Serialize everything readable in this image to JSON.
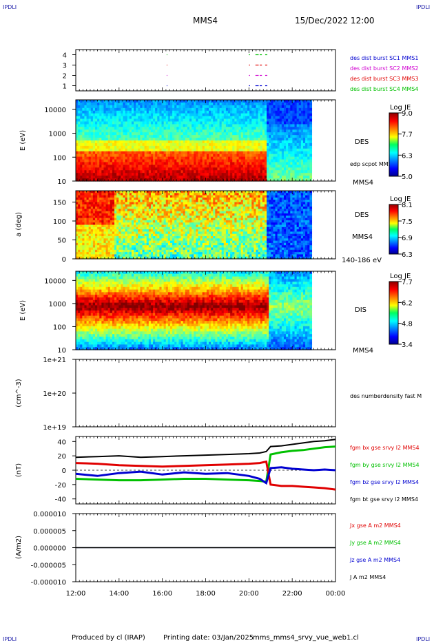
{
  "corner_labels": {
    "tl": "IPDLI",
    "tr": "IPDLI",
    "bl": "IPDLI",
    "br": "IPDLI"
  },
  "colors": {
    "corner": "#1a1aa8",
    "blue": "#0000d0",
    "magenta": "#d000d0",
    "red": "#e00000",
    "green": "#00c000",
    "black": "#000000"
  },
  "header": {
    "spacecraft": "MMS4",
    "datetime": "15/Dec/2022 12:00"
  },
  "footer": {
    "producer": "Produced by cl (IRAP)",
    "printing_date": "Printing date: 03/Jan/2025",
    "filename": "mms_mms4_srvy_vue_web1.cl"
  },
  "chart_data": [
    {
      "type": "scatter",
      "name": "burst-availability",
      "yticks": [
        "4",
        "3",
        "2",
        "1"
      ],
      "ylim": [
        0.5,
        4.5
      ],
      "legend": [
        {
          "label": "des dist burst SC1 MMS1",
          "color": "#0000d0"
        },
        {
          "label": "des dist burst SC2 MMS2",
          "color": "#d000d0"
        },
        {
          "label": "des dist burst SC3 MMS3",
          "color": "#e00000"
        },
        {
          "label": "des dist burst SC4 MMS4",
          "color": "#00c000"
        }
      ],
      "segments_hours": [
        {
          "start": 16.2,
          "end": 16.23
        },
        {
          "start": 20.0,
          "end": 20.05
        },
        {
          "start": 20.3,
          "end": 20.45
        },
        {
          "start": 20.5,
          "end": 20.6
        },
        {
          "start": 20.75,
          "end": 20.85
        }
      ]
    },
    {
      "type": "heatmap",
      "name": "des-energy-spectrogram",
      "ylabel": "E (eV)",
      "yscale": "log",
      "yticks": [
        "10000",
        "1000",
        "100",
        "10"
      ],
      "ylim": [
        10,
        25000
      ],
      "label": "DES",
      "overlay": "edp scpot MMS4",
      "sub_label": "MMS4",
      "colorbar": {
        "title": "Log JE",
        "ticks": [
          "9.0",
          "7.7",
          "6.3",
          "5.0"
        ],
        "range": [
          5.0,
          9.0
        ]
      }
    },
    {
      "type": "heatmap",
      "name": "des-pitch-angle",
      "ylabel": "a (deg)",
      "yticks": [
        "150",
        "100",
        "50",
        "0"
      ],
      "ylim": [
        0,
        180
      ],
      "labels": [
        "DES",
        "MMS4",
        "140-186 eV"
      ],
      "colorbar": {
        "title": "Log JE",
        "ticks": [
          "8.1",
          "7.5",
          "6.9",
          "6.3"
        ],
        "range": [
          6.3,
          8.1
        ]
      }
    },
    {
      "type": "heatmap",
      "name": "dis-energy-spectrogram",
      "ylabel": "E (eV)",
      "yscale": "log",
      "yticks": [
        "10000",
        "1000",
        "100",
        "10"
      ],
      "ylim": [
        10,
        25000
      ],
      "label": "DIS",
      "sub_label": "MMS4",
      "colorbar": {
        "title": "Log JE",
        "ticks": [
          "7.7",
          "6.2",
          "4.8",
          "3.4"
        ],
        "range": [
          3.4,
          7.7
        ]
      }
    },
    {
      "type": "line",
      "name": "density",
      "ylabel": "(cm^-3)",
      "yscale": "log",
      "yticks": [
        "1e+21",
        "1e+20",
        "1e+19"
      ],
      "ylim": [
        1e+19,
        1e+21
      ],
      "legend": [
        {
          "label": "des numberdensity fast M",
          "color": "#000000"
        }
      ],
      "series": []
    },
    {
      "type": "line",
      "name": "magnetic-field",
      "ylabel": "(nT)",
      "yticks": [
        "40",
        "20",
        "0",
        "-20",
        "-40"
      ],
      "ylim": [
        -47,
        47
      ],
      "x": [
        12.0,
        13.0,
        14.0,
        15.0,
        16.0,
        17.0,
        18.0,
        19.0,
        20.0,
        20.5,
        20.8,
        21.0,
        21.5,
        22.0,
        22.5,
        23.0,
        23.5,
        24.0
      ],
      "series": [
        {
          "name": "fgm bx gse srvy l2 MMS4",
          "color": "#e00000",
          "values": [
            10,
            9,
            7,
            6,
            5,
            6,
            7,
            8,
            9,
            10,
            12,
            -20,
            -22,
            -22,
            -23,
            -24,
            -25,
            -27
          ]
        },
        {
          "name": "fgm by gse srvy l2 MMS4",
          "color": "#00c000",
          "values": [
            -12,
            -13,
            -14,
            -14,
            -13,
            -12,
            -12,
            -13,
            -14,
            -15,
            -16,
            22,
            25,
            27,
            28,
            30,
            32,
            33
          ]
        },
        {
          "name": "fgm bz gse srvy l2 MMS4",
          "color": "#0000d0",
          "values": [
            -5,
            -8,
            -4,
            -2,
            -6,
            -3,
            -5,
            -4,
            -8,
            -12,
            -18,
            3,
            4,
            2,
            1,
            0,
            1,
            0
          ]
        },
        {
          "name": "fgm bt gse srvy l2 MMS4",
          "color": "#000000",
          "values": [
            18,
            19,
            20,
            18,
            19,
            20,
            21,
            22,
            23,
            24,
            26,
            33,
            34,
            36,
            38,
            40,
            41,
            43
          ]
        }
      ]
    },
    {
      "type": "line",
      "name": "current-density",
      "ylabel": "(A/m2)",
      "yticks": [
        "0.000010",
        "0.000005",
        "0.000000",
        "-0.000005",
        "-0.000010"
      ],
      "ylim": [
        -1e-05,
        1e-05
      ],
      "x": [
        12.0,
        24.0
      ],
      "series": [
        {
          "name": "Jx gse A m2 MMS4",
          "color": "#e00000",
          "values": [
            0,
            0
          ]
        },
        {
          "name": "Jy gse A m2 MMS4",
          "color": "#00c000",
          "values": [
            0,
            0
          ]
        },
        {
          "name": "Jz gse A m2 MMS4",
          "color": "#0000d0",
          "values": [
            0,
            0
          ]
        },
        {
          "name": "J A m2 MMS4",
          "color": "#000000",
          "values": [
            0,
            0
          ]
        }
      ]
    }
  ],
  "time_axis": {
    "ticks": [
      "12:00",
      "14:00",
      "16:00",
      "18:00",
      "20:00",
      "22:00",
      "00:00"
    ],
    "range_hours": [
      12,
      24
    ]
  }
}
